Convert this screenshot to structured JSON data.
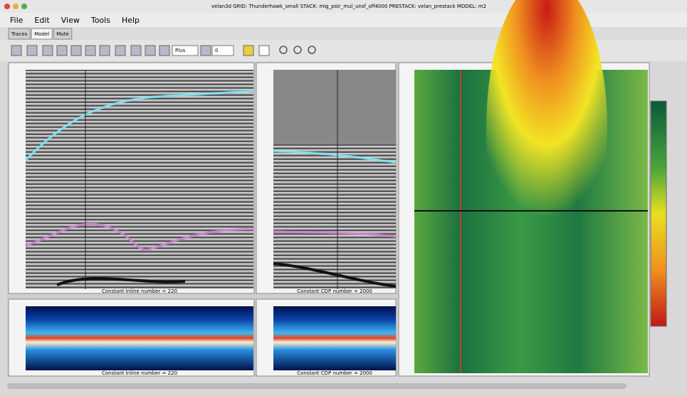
{
  "window": {
    "title": "velan3d GRID: Thunderhawk_small STACK: mig_pstr_mul_unsf_off4000 PRESTACK: velan_prestack MODEL: m2",
    "menu": [
      "File",
      "Edit",
      "View",
      "Tools",
      "Help"
    ],
    "tabs": [
      "Traces",
      "Model",
      "Mute"
    ],
    "toolbar": {
      "scale_field": "Plus",
      "step_field": "0"
    }
  },
  "panels": {
    "inline_caption": "Constant Inline number = 220",
    "cdp_caption": "Constant CDP number = 2000",
    "inline_spectrum_caption": "Constant Inline number = 220",
    "cdp_spectrum_caption": "Constant CDP number = 2000"
  }
}
